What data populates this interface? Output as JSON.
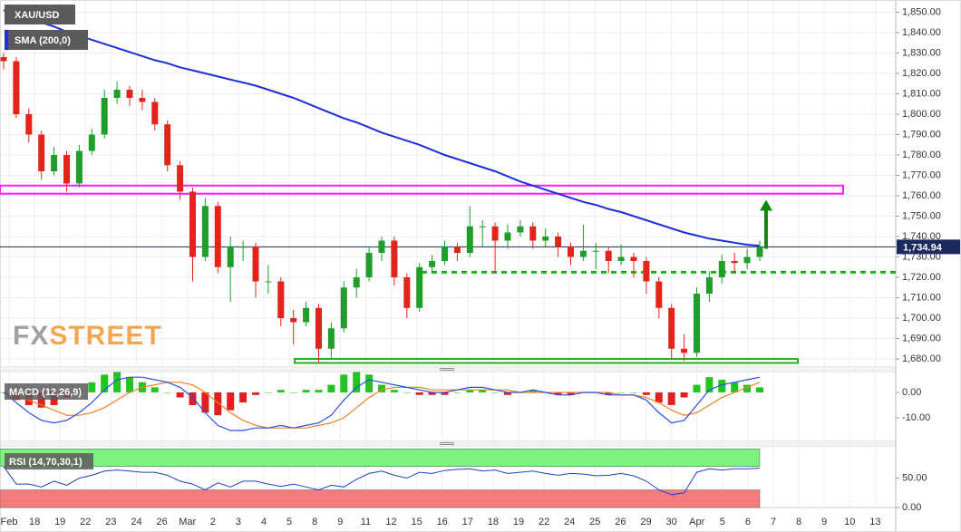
{
  "chart_data": [
    {
      "type": "candlestick",
      "ylim": [
        1676,
        1856
      ],
      "yticks": [
        {
          "value": 1680,
          "label": "1,680.00"
        },
        {
          "value": 1690,
          "label": "1,690.00"
        },
        {
          "value": 1700,
          "label": "1,700.00"
        },
        {
          "value": 1710,
          "label": "1,710.00"
        },
        {
          "value": 1720,
          "label": "1,720.00"
        },
        {
          "value": 1730,
          "label": "1,730.00"
        },
        {
          "value": 1740,
          "label": "1,740.00"
        },
        {
          "value": 1750,
          "label": "1,750.00"
        },
        {
          "value": 1760,
          "label": "1,760.00"
        },
        {
          "value": 1770,
          "label": "1,770.00"
        },
        {
          "value": 1780,
          "label": "1,780.00"
        },
        {
          "value": 1790,
          "label": "1,790.00"
        },
        {
          "value": 1800,
          "label": "1,800.00"
        },
        {
          "value": 1810,
          "label": "1,810.00"
        },
        {
          "value": 1820,
          "label": "1,820.00"
        },
        {
          "value": 1830,
          "label": "1,830.00"
        },
        {
          "value": 1840,
          "label": "1,840.00"
        },
        {
          "value": 1850,
          "label": "1,850.00"
        }
      ],
      "grid": true,
      "xtick_labels": [
        "Feb",
        "18",
        "19",
        "22",
        "23",
        "24",
        "26",
        "Mar",
        "2",
        "3",
        "4",
        "5",
        "8",
        "9",
        "11",
        "12",
        "15",
        "16",
        "17",
        "18",
        "19",
        "22",
        "24",
        "25",
        "26",
        "29",
        "30",
        "Apr",
        "5",
        "6",
        "7",
        "8",
        "9",
        "10",
        "13"
      ],
      "series": [
        {
          "name": "XAU/USD",
          "type": "candlestick",
          "up_color": "#1f9e2a",
          "down_color": "#e3241b",
          "open": [
            1828,
            1826,
            1800,
            1790,
            1772,
            1780,
            1766,
            1782,
            1790,
            1808,
            1812,
            1808,
            1806,
            1795,
            1775,
            1762,
            1730,
            1755,
            1725,
            1735,
            1735,
            1718,
            1718,
            1700,
            1698,
            1705,
            1685,
            1695,
            1715,
            1720,
            1732,
            1738,
            1720,
            1705,
            1725,
            1728,
            1735,
            1732,
            1745,
            1745,
            1738,
            1742,
            1745,
            1738,
            1740,
            1735,
            1730,
            1733,
            1733,
            1728,
            1730,
            1728,
            1718,
            1705,
            1685,
            1683,
            1712,
            1720,
            1728,
            1727,
            1730
          ],
          "high": [
            1830,
            1828,
            1803,
            1792,
            1784,
            1782,
            1785,
            1793,
            1812,
            1816,
            1814,
            1812,
            1808,
            1797,
            1777,
            1764,
            1759,
            1757,
            1740,
            1738,
            1737,
            1726,
            1720,
            1704,
            1708,
            1707,
            1698,
            1718,
            1724,
            1735,
            1740,
            1740,
            1722,
            1727,
            1731,
            1738,
            1737,
            1755,
            1748,
            1747,
            1746,
            1748,
            1747,
            1744,
            1742,
            1737,
            1746,
            1737,
            1735,
            1736,
            1732,
            1730,
            1720,
            1707,
            1692,
            1715,
            1723,
            1731,
            1732,
            1734,
            1738
          ],
          "low": [
            1822,
            1798,
            1786,
            1768,
            1770,
            1762,
            1764,
            1780,
            1788,
            1805,
            1804,
            1802,
            1792,
            1772,
            1758,
            1718,
            1728,
            1722,
            1708,
            1728,
            1710,
            1712,
            1696,
            1687,
            1696,
            1678,
            1680,
            1693,
            1710,
            1718,
            1728,
            1716,
            1700,
            1703,
            1722,
            1726,
            1728,
            1730,
            1735,
            1722,
            1734,
            1740,
            1734,
            1735,
            1730,
            1726,
            1728,
            1724,
            1722,
            1726,
            1720,
            1712,
            1700,
            1680,
            1679,
            1681,
            1708,
            1717,
            1722,
            1724,
            1728
          ],
          "close": [
            1826,
            1800,
            1790,
            1772,
            1780,
            1766,
            1782,
            1790,
            1808,
            1812,
            1808,
            1806,
            1795,
            1775,
            1762,
            1730,
            1755,
            1725,
            1735,
            1735,
            1718,
            1718,
            1700,
            1698,
            1705,
            1685,
            1695,
            1715,
            1720,
            1732,
            1738,
            1720,
            1705,
            1725,
            1728,
            1735,
            1732,
            1745,
            1745,
            1738,
            1742,
            1745,
            1738,
            1740,
            1735,
            1730,
            1733,
            1733,
            1728,
            1730,
            1728,
            1718,
            1705,
            1685,
            1683,
            1712,
            1720,
            1728,
            1727,
            1730,
            1734.94
          ]
        },
        {
          "name": "SMA (200,0)",
          "type": "line",
          "color": "#1c2fd8",
          "values": [
            1851,
            1849,
            1847,
            1845,
            1843,
            1840.5,
            1838.5,
            1836.5,
            1834.5,
            1832.5,
            1830.5,
            1828.5,
            1826.5,
            1825,
            1823,
            1821.5,
            1820,
            1818.5,
            1817,
            1815.5,
            1814,
            1812,
            1810,
            1808,
            1805.5,
            1803,
            1800.5,
            1798,
            1796,
            1793.5,
            1791,
            1789,
            1787,
            1785,
            1782.5,
            1780,
            1778,
            1776,
            1774,
            1772,
            1769.5,
            1767,
            1765,
            1763,
            1761,
            1759,
            1757,
            1755.5,
            1753.5,
            1752,
            1750,
            1748,
            1746,
            1744,
            1742,
            1740.5,
            1739,
            1738,
            1737,
            1736,
            1735.5
          ]
        }
      ],
      "levels": {
        "resistance": {
          "values": [
            1761,
            1765
          ],
          "color": "#ff1aff"
        },
        "support": {
          "value": 1722.5,
          "color": "#22b022"
        },
        "base": {
          "values": [
            1678,
            1680
          ],
          "color": "#22b022"
        },
        "target_arrow": {
          "from": 1734,
          "to": 1758,
          "color": "#118a11"
        }
      },
      "last_price": {
        "value": 1734.94,
        "label": "1,734.94",
        "color": "#1b2a5e"
      },
      "watermark": {
        "fx": "FX",
        "street": "STREET"
      }
    },
    {
      "type": "macd",
      "title": "MACD (12,26,9)",
      "ylim": [
        -19.3,
        8.2
      ],
      "yticks": [
        {
          "value": 0,
          "label": "0.00"
        },
        {
          "value": -10,
          "label": "-10.00"
        }
      ],
      "macd": {
        "color": "#2b50e0",
        "values": [
          0,
          -4,
          -8,
          -11,
          -12,
          -11,
          -8,
          -4,
          1,
          5,
          6,
          6,
          5,
          4,
          2,
          -2,
          -8,
          -13,
          -15,
          -15,
          -14,
          -14,
          -13,
          -14,
          -13,
          -12,
          -9,
          -3,
          2,
          5,
          4,
          3,
          2,
          1,
          0,
          0,
          1,
          2,
          2,
          1,
          0,
          0,
          1,
          0,
          -1,
          -1,
          0,
          0,
          -1,
          -1,
          -1,
          -3,
          -8,
          -12,
          -11,
          -5,
          1,
          3,
          4,
          5,
          6
        ]
      },
      "signal": {
        "color": "#f08224",
        "values": [
          0,
          -1,
          -3,
          -5,
          -7,
          -9,
          -9,
          -8,
          -6,
          -3,
          0,
          2,
          3,
          4,
          4,
          3,
          0,
          -4,
          -8,
          -11,
          -13,
          -14,
          -14,
          -14,
          -14,
          -13,
          -12,
          -10,
          -6,
          -2,
          1,
          2,
          2,
          2,
          1,
          1,
          1,
          1,
          1,
          1,
          1,
          0,
          0,
          0,
          0,
          0,
          0,
          0,
          0,
          -1,
          -1,
          -2,
          -4,
          -7,
          -9,
          -8,
          -5,
          -2,
          0,
          2,
          4
        ]
      },
      "histogram": {
        "up_color": "#22c422",
        "down_color": "#e02020",
        "values": [
          0,
          -3,
          -5,
          -6,
          -5,
          -2,
          1,
          4,
          7,
          8,
          6,
          4,
          2,
          0,
          -2,
          -5,
          -8,
          -9,
          -7,
          -4,
          -1,
          0,
          1,
          0,
          1,
          1,
          3,
          7,
          8,
          7,
          3,
          1,
          0,
          -1,
          -1,
          -1,
          0,
          1,
          1,
          0,
          -1,
          0,
          1,
          0,
          -1,
          -1,
          0,
          0,
          -1,
          0,
          0,
          -1,
          -4,
          -5,
          -2,
          3,
          6,
          5,
          4,
          3,
          2
        ]
      }
    },
    {
      "type": "rsi",
      "title": "RSI (14,70,30,1)",
      "ylim": [
        0,
        105
      ],
      "yticks": [
        {
          "value": 0,
          "label": "0.00"
        },
        {
          "value": 50,
          "label": "50.00"
        }
      ],
      "bands": {
        "overbought": {
          "values": [
            70,
            100
          ],
          "color": "#7ef27e"
        },
        "oversold": {
          "values": [
            0,
            30
          ],
          "color": "#f47c7c"
        }
      },
      "line": {
        "color": "#2040c0",
        "values": [
          70,
          40,
          40,
          35,
          45,
          38,
          50,
          55,
          62,
          64,
          62,
          60,
          60,
          55,
          45,
          40,
          30,
          42,
          35,
          45,
          45,
          40,
          36,
          40,
          35,
          30,
          38,
          35,
          48,
          58,
          62,
          55,
          50,
          60,
          58,
          63,
          65,
          66,
          62,
          64,
          58,
          60,
          62,
          58,
          55,
          58,
          57,
          54,
          55,
          58,
          54,
          45,
          30,
          22,
          25,
          60,
          66,
          64,
          66,
          66,
          67
        ]
      }
    }
  ]
}
